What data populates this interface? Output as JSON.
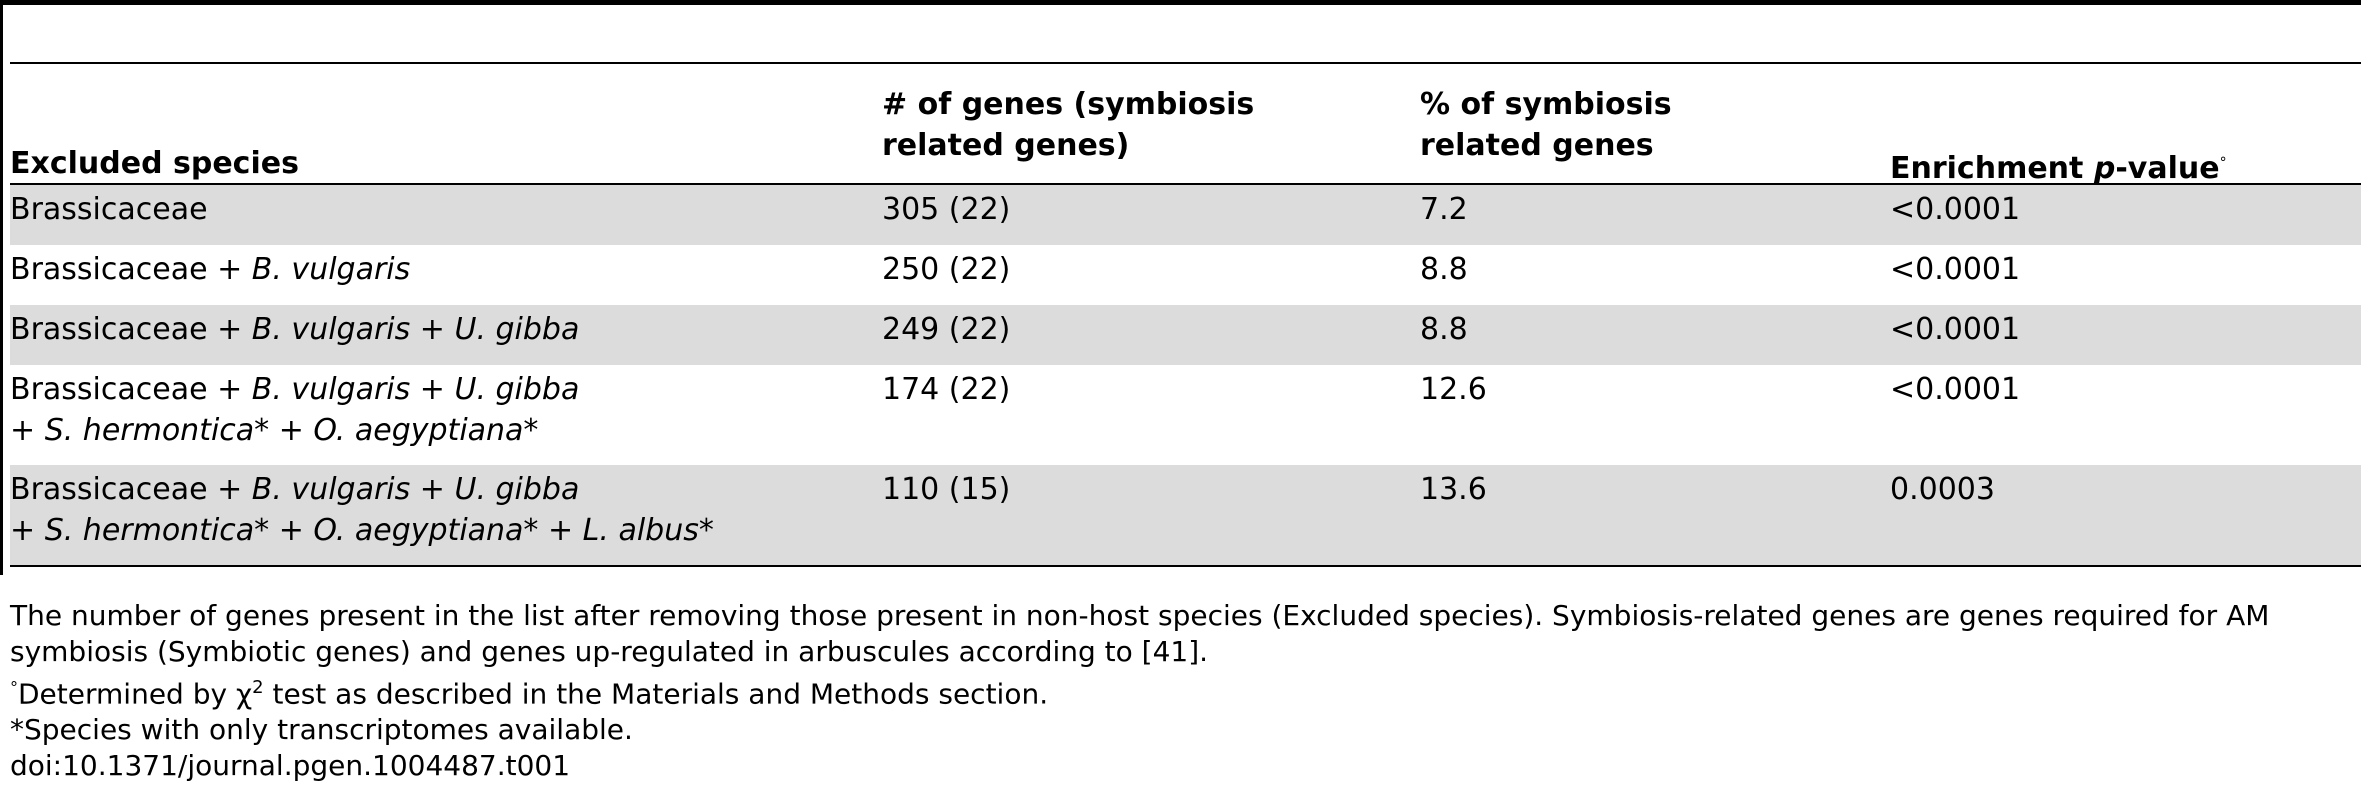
{
  "table": {
    "headers": {
      "excluded_species": "Excluded species",
      "num_genes_line1": "# of genes (symbiosis",
      "num_genes_line2": "related genes)",
      "pct_line1": "% of symbiosis",
      "pct_line2": "related genes",
      "enrichment_prefix": "Enrichment ",
      "enrichment_p": "p",
      "enrichment_suffix": "-value",
      "enrichment_mark": "°"
    },
    "rows": [
      {
        "species_line1": [
          "Brassicaceae"
        ],
        "species_line2": [],
        "genes": "305 (22)",
        "percent": "7.2",
        "pvalue": "<0.0001"
      },
      {
        "species_line1": [
          "Brassicaceae + ",
          "B. vulgaris"
        ],
        "species_line2": [],
        "genes": "250 (22)",
        "percent": "8.8",
        "pvalue": "<0.0001"
      },
      {
        "species_line1": [
          "Brassicaceae + ",
          "B. vulgaris",
          " + ",
          "U. gibba"
        ],
        "species_line2": [],
        "genes": "249 (22)",
        "percent": "8.8",
        "pvalue": "<0.0001"
      },
      {
        "species_line1": [
          "Brassicaceae + ",
          "B. vulgaris",
          " + ",
          "U. gibba"
        ],
        "species_line2": [
          "+ ",
          "S. hermontica*",
          " + ",
          "O. aegyptiana*"
        ],
        "genes": "174 (22)",
        "percent": "12.6",
        "pvalue": "<0.0001"
      },
      {
        "species_line1": [
          "Brassicaceae + ",
          "B. vulgaris",
          " + ",
          "U. gibba"
        ],
        "species_line2": [
          "+ ",
          "S. hermontica*",
          " + ",
          "O. aegyptiana*",
          " + ",
          "L. albus*"
        ],
        "genes": "110 (15)",
        "percent": "13.6",
        "pvalue": "0.0003"
      }
    ]
  },
  "notes": {
    "description": "The number of genes present in the list after removing those present in non-host species (Excluded species). Symbiosis-related genes are genes required for AM symbiosis (Symbiotic genes) and genes up-regulated in arbuscules according to [41].",
    "chi_mark": "°",
    "chi_prefix": "Determined by ",
    "chi_symbol": "χ",
    "chi_exp": "2",
    "chi_suffix": " test as described in the Materials and Methods section.",
    "asterisk_note": "*Species with only transcriptomes available.",
    "doi": "doi:10.1371/journal.pgen.1004487.t001"
  }
}
